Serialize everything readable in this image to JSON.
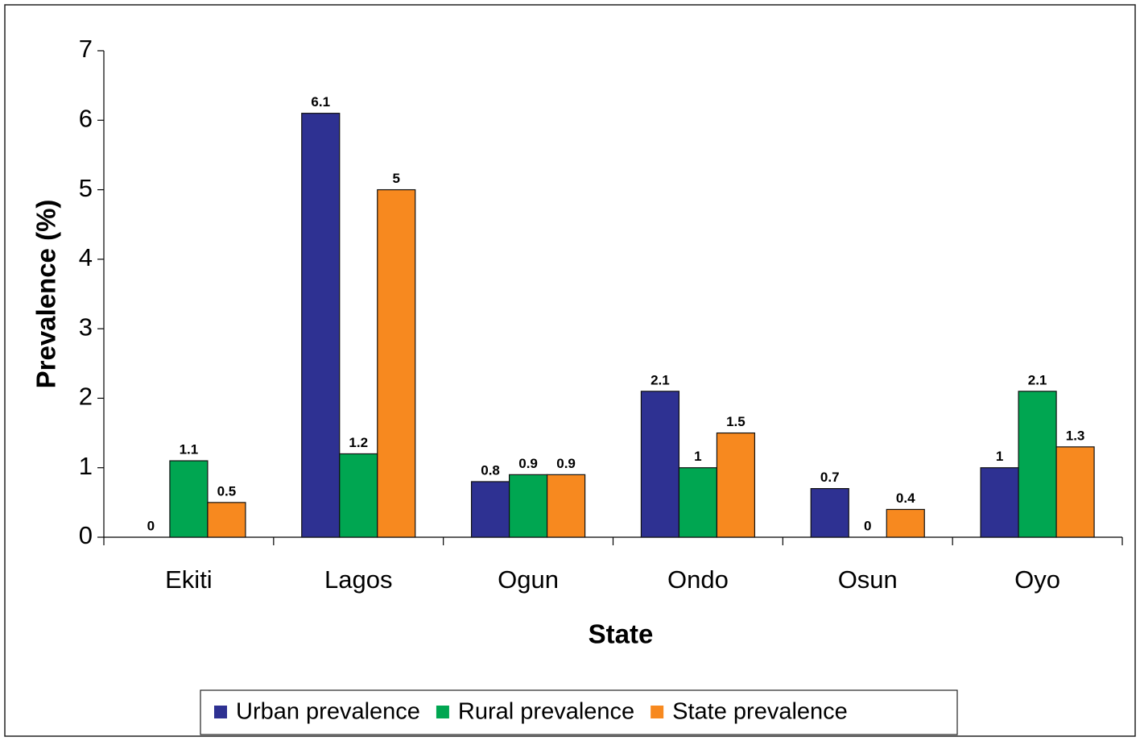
{
  "chart_data": {
    "type": "bar",
    "x_label": "State",
    "y_label": "Prevalence (%)",
    "categories": [
      "Ekiti",
      "Lagos",
      "Ogun",
      "Ondo",
      "Osun",
      "Oyo"
    ],
    "series": [
      {
        "name": "Urban prevalence",
        "color": "#2e3192",
        "values": [
          0,
          6.1,
          0.8,
          2.1,
          0.7,
          1
        ]
      },
      {
        "name": "Rural prevalence",
        "color": "#00a651",
        "values": [
          1.1,
          1.2,
          0.9,
          1,
          0,
          2.1
        ]
      },
      {
        "name": "State prevalence",
        "color": "#f7891f",
        "values": [
          0.5,
          5,
          0.9,
          1.5,
          0.4,
          1.3
        ]
      }
    ],
    "ylim": [
      0,
      7
    ],
    "yticks": [
      0,
      1,
      2,
      3,
      4,
      5,
      6,
      7
    ],
    "legend": "bottom",
    "grid": false
  }
}
